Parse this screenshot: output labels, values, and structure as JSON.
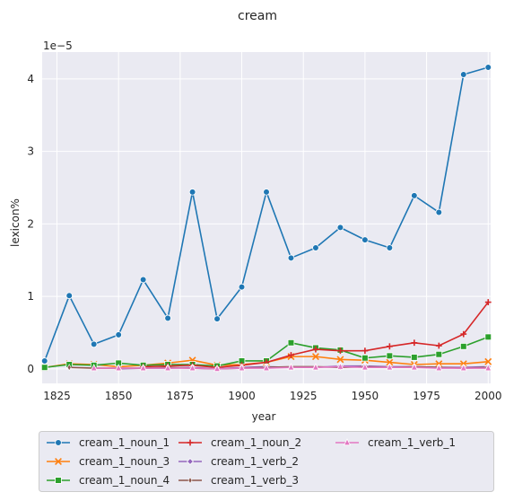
{
  "chart_data": {
    "type": "line",
    "title": "cream",
    "xlabel": "year",
    "ylabel": "lexicon%",
    "y_scale_label": "1e−5",
    "xlim": [
      1819,
      2001
    ],
    "ylim": [
      -0.2,
      4.37
    ],
    "x_ticks": [
      1825,
      1850,
      1875,
      1900,
      1925,
      1950,
      1975,
      2000
    ],
    "y_ticks": [
      0,
      1,
      2,
      3,
      4
    ],
    "grid": true,
    "legend_position": "bottom",
    "series": [
      {
        "name": "cream_1_noun_1",
        "color": "#1f77b4",
        "marker": "circle",
        "x": [
          1820,
          1830,
          1840,
          1850,
          1860,
          1870,
          1880,
          1890,
          1900,
          1910,
          1920,
          1930,
          1940,
          1950,
          1960,
          1970,
          1980,
          1990,
          2000
        ],
        "y": [
          0.11,
          1.01,
          0.34,
          0.47,
          1.23,
          0.7,
          2.44,
          0.69,
          1.13,
          2.44,
          1.53,
          1.67,
          1.95,
          1.78,
          1.67,
          2.39,
          2.16,
          4.06,
          4.16
        ]
      },
      {
        "name": "cream_1_noun_3",
        "color": "#ff7f0e",
        "marker": "x",
        "x": [
          1820,
          1830,
          1840,
          1850,
          1860,
          1870,
          1880,
          1890,
          1900,
          1910,
          1920,
          1930,
          1940,
          1950,
          1960,
          1970,
          1980,
          1990,
          2000
        ],
        "y": [
          0.02,
          0.07,
          0.06,
          0.03,
          0.05,
          0.08,
          0.12,
          0.05,
          0.06,
          0.09,
          0.17,
          0.17,
          0.13,
          0.12,
          0.09,
          0.06,
          0.07,
          0.07,
          0.1
        ]
      },
      {
        "name": "cream_1_noun_4",
        "color": "#2ca02c",
        "marker": "square",
        "x": [
          1820,
          1830,
          1840,
          1850,
          1860,
          1870,
          1880,
          1890,
          1900,
          1910,
          1920,
          1930,
          1940,
          1950,
          1960,
          1970,
          1980,
          1990,
          2000
        ],
        "y": [
          0.02,
          0.06,
          0.05,
          0.08,
          0.05,
          0.06,
          0.06,
          0.04,
          0.11,
          0.11,
          0.36,
          0.29,
          0.26,
          0.15,
          0.18,
          0.16,
          0.2,
          0.31,
          0.44
        ]
      },
      {
        "name": "cream_1_noun_2",
        "color": "#d62728",
        "marker": "plus",
        "x": [
          1860,
          1870,
          1880,
          1890,
          1900,
          1910,
          1920,
          1930,
          1940,
          1950,
          1960,
          1970,
          1980,
          1990,
          2000
        ],
        "y": [
          0.03,
          0.04,
          0.05,
          0.02,
          0.05,
          0.09,
          0.19,
          0.27,
          0.25,
          0.25,
          0.31,
          0.36,
          0.32,
          0.48,
          0.92
        ]
      },
      {
        "name": "cream_1_verb_2",
        "color": "#9467bd",
        "marker": "diamond",
        "x": [
          1850,
          1860,
          1870,
          1880,
          1890,
          1900,
          1910,
          1920,
          1930,
          1940,
          1950,
          1960,
          1970,
          1980,
          1990,
          2000
        ],
        "y": [
          0.0,
          0.01,
          0.01,
          0.02,
          0.0,
          0.02,
          0.03,
          0.02,
          0.02,
          0.04,
          0.04,
          0.03,
          0.03,
          0.02,
          0.02,
          0.03
        ]
      },
      {
        "name": "cream_1_verb_3",
        "color": "#8c564b",
        "marker": "thin_diamond",
        "x": [
          1830,
          1840,
          1850,
          1860,
          1870,
          1880,
          1890,
          1900,
          1910,
          1920,
          1930,
          1940,
          1950,
          1960,
          1970,
          1980,
          1990,
          2000
        ],
        "y": [
          0.02,
          0.01,
          0.01,
          0.01,
          0.02,
          0.01,
          0.0,
          0.01,
          0.02,
          0.03,
          0.03,
          0.02,
          0.03,
          0.02,
          0.03,
          0.02,
          0.01,
          0.02
        ]
      },
      {
        "name": "cream_1_verb_1",
        "color": "#e377c2",
        "marker": "triangle",
        "x": [
          1840,
          1850,
          1860,
          1870,
          1880,
          1890,
          1900,
          1910,
          1920,
          1930,
          1940,
          1950,
          1960,
          1970,
          1980,
          1990,
          2000
        ],
        "y": [
          0.01,
          0.01,
          0.01,
          0.01,
          0.01,
          0.0,
          0.01,
          0.01,
          0.02,
          0.02,
          0.03,
          0.02,
          0.02,
          0.02,
          0.01,
          0.01,
          0.01
        ]
      }
    ]
  }
}
